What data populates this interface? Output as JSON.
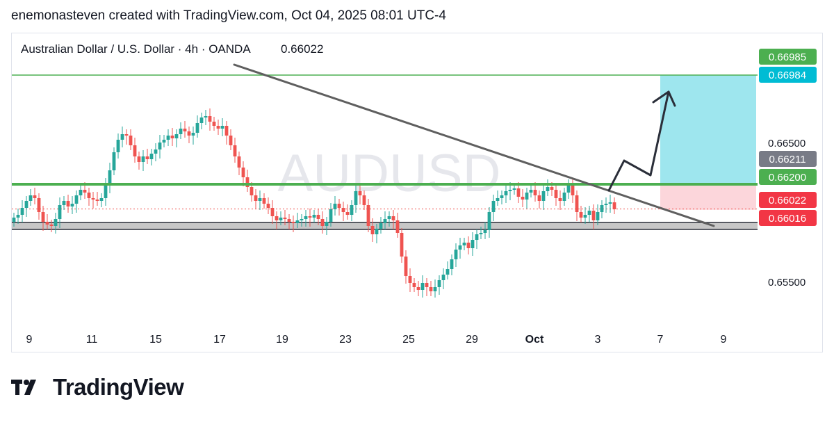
{
  "header": {
    "credit": "enemonasteven created with TradingView.com, Oct 04, 2025 08:01 UTC-4"
  },
  "brand": {
    "name": "TradingView",
    "logo_icon": "tradingview-logo-icon"
  },
  "colors": {
    "up": "#26a69a",
    "down": "#ef5350",
    "trendline": "#5f5f5f",
    "support": "#9e9e9e",
    "resistance": "#4caf50",
    "target": "#4caf50",
    "profit_zone": "#9ee6ee",
    "loss_zone": "#fcd6db",
    "last_price_line": "#ef5350",
    "arrow": "#2a2e39"
  },
  "chart_data": {
    "type": "candlestick",
    "title": "Australian Dollar / U.S. Dollar · 4h · OANDA",
    "last_price_label": "0.66022",
    "watermark": "AUDUSD",
    "y_axis": {
      "min": 0.652,
      "max": 0.672,
      "ticks": [
        "0.66500",
        "0.65500"
      ]
    },
    "x_axis": {
      "ticks": [
        "9",
        "11",
        "15",
        "17",
        "19",
        "23",
        "25",
        "29",
        "Oct",
        "3",
        "7",
        "9"
      ]
    },
    "price_labels": [
      {
        "text": "0.66985",
        "kind": "target"
      },
      {
        "text": "0.66984",
        "kind": "profit"
      },
      {
        "text": "0.66211",
        "kind": "gray"
      },
      {
        "text": "0.66200",
        "kind": "resistance"
      },
      {
        "text": "0.66022",
        "kind": "last"
      },
      {
        "text": "0.66016",
        "kind": "stop"
      }
    ],
    "levels": {
      "target": 0.66985,
      "resistance": 0.662,
      "last": 0.66022,
      "stop": 0.66016,
      "support": 0.659
    },
    "trendline": [
      [
        0.669,
        0.669
      ],
      [
        0.659,
        0.659
      ]
    ],
    "closes": [
      0.6596,
      0.6598,
      0.6603,
      0.6608,
      0.6612,
      0.661,
      0.66,
      0.6593,
      0.6591,
      0.659,
      0.6595,
      0.6605,
      0.6608,
      0.6604,
      0.6606,
      0.6612,
      0.6616,
      0.6614,
      0.661,
      0.6609,
      0.6608,
      0.661,
      0.662,
      0.663,
      0.6643,
      0.6652,
      0.6656,
      0.6655,
      0.6648,
      0.664,
      0.6636,
      0.664,
      0.6638,
      0.6642,
      0.6645,
      0.665,
      0.6652,
      0.6655,
      0.6653,
      0.6656,
      0.666,
      0.6658,
      0.6655,
      0.6657,
      0.6664,
      0.6668,
      0.6669,
      0.6665,
      0.6662,
      0.666,
      0.6662,
      0.6655,
      0.6648,
      0.664,
      0.6632,
      0.6625,
      0.6618,
      0.6612,
      0.6608,
      0.661,
      0.6606,
      0.6603,
      0.6597,
      0.6594,
      0.6596,
      0.6595,
      0.6593,
      0.6592,
      0.6594,
      0.6595,
      0.6597,
      0.6596,
      0.6598,
      0.6595,
      0.659,
      0.6593,
      0.6602,
      0.6606,
      0.6603,
      0.66,
      0.6598,
      0.6605,
      0.6615,
      0.6612,
      0.6605,
      0.659,
      0.6584,
      0.6588,
      0.6592,
      0.6595,
      0.6597,
      0.6594,
      0.6585,
      0.6568,
      0.6554,
      0.6549,
      0.6546,
      0.6544,
      0.6549,
      0.6546,
      0.6543,
      0.6546,
      0.6551,
      0.6555,
      0.6559,
      0.6566,
      0.6573,
      0.6576,
      0.6578,
      0.6574,
      0.658,
      0.6584,
      0.6585,
      0.6587,
      0.66,
      0.6608,
      0.661,
      0.6612,
      0.6615,
      0.6616,
      0.6617,
      0.6611,
      0.6609,
      0.6614,
      0.6616,
      0.6612,
      0.6608,
      0.6615,
      0.6618,
      0.6616,
      0.661,
      0.6608,
      0.6614,
      0.6619,
      0.6612,
      0.66,
      0.6596,
      0.6598,
      0.6601,
      0.6594,
      0.66,
      0.6605,
      0.6606,
      0.6607,
      0.6602
    ]
  }
}
